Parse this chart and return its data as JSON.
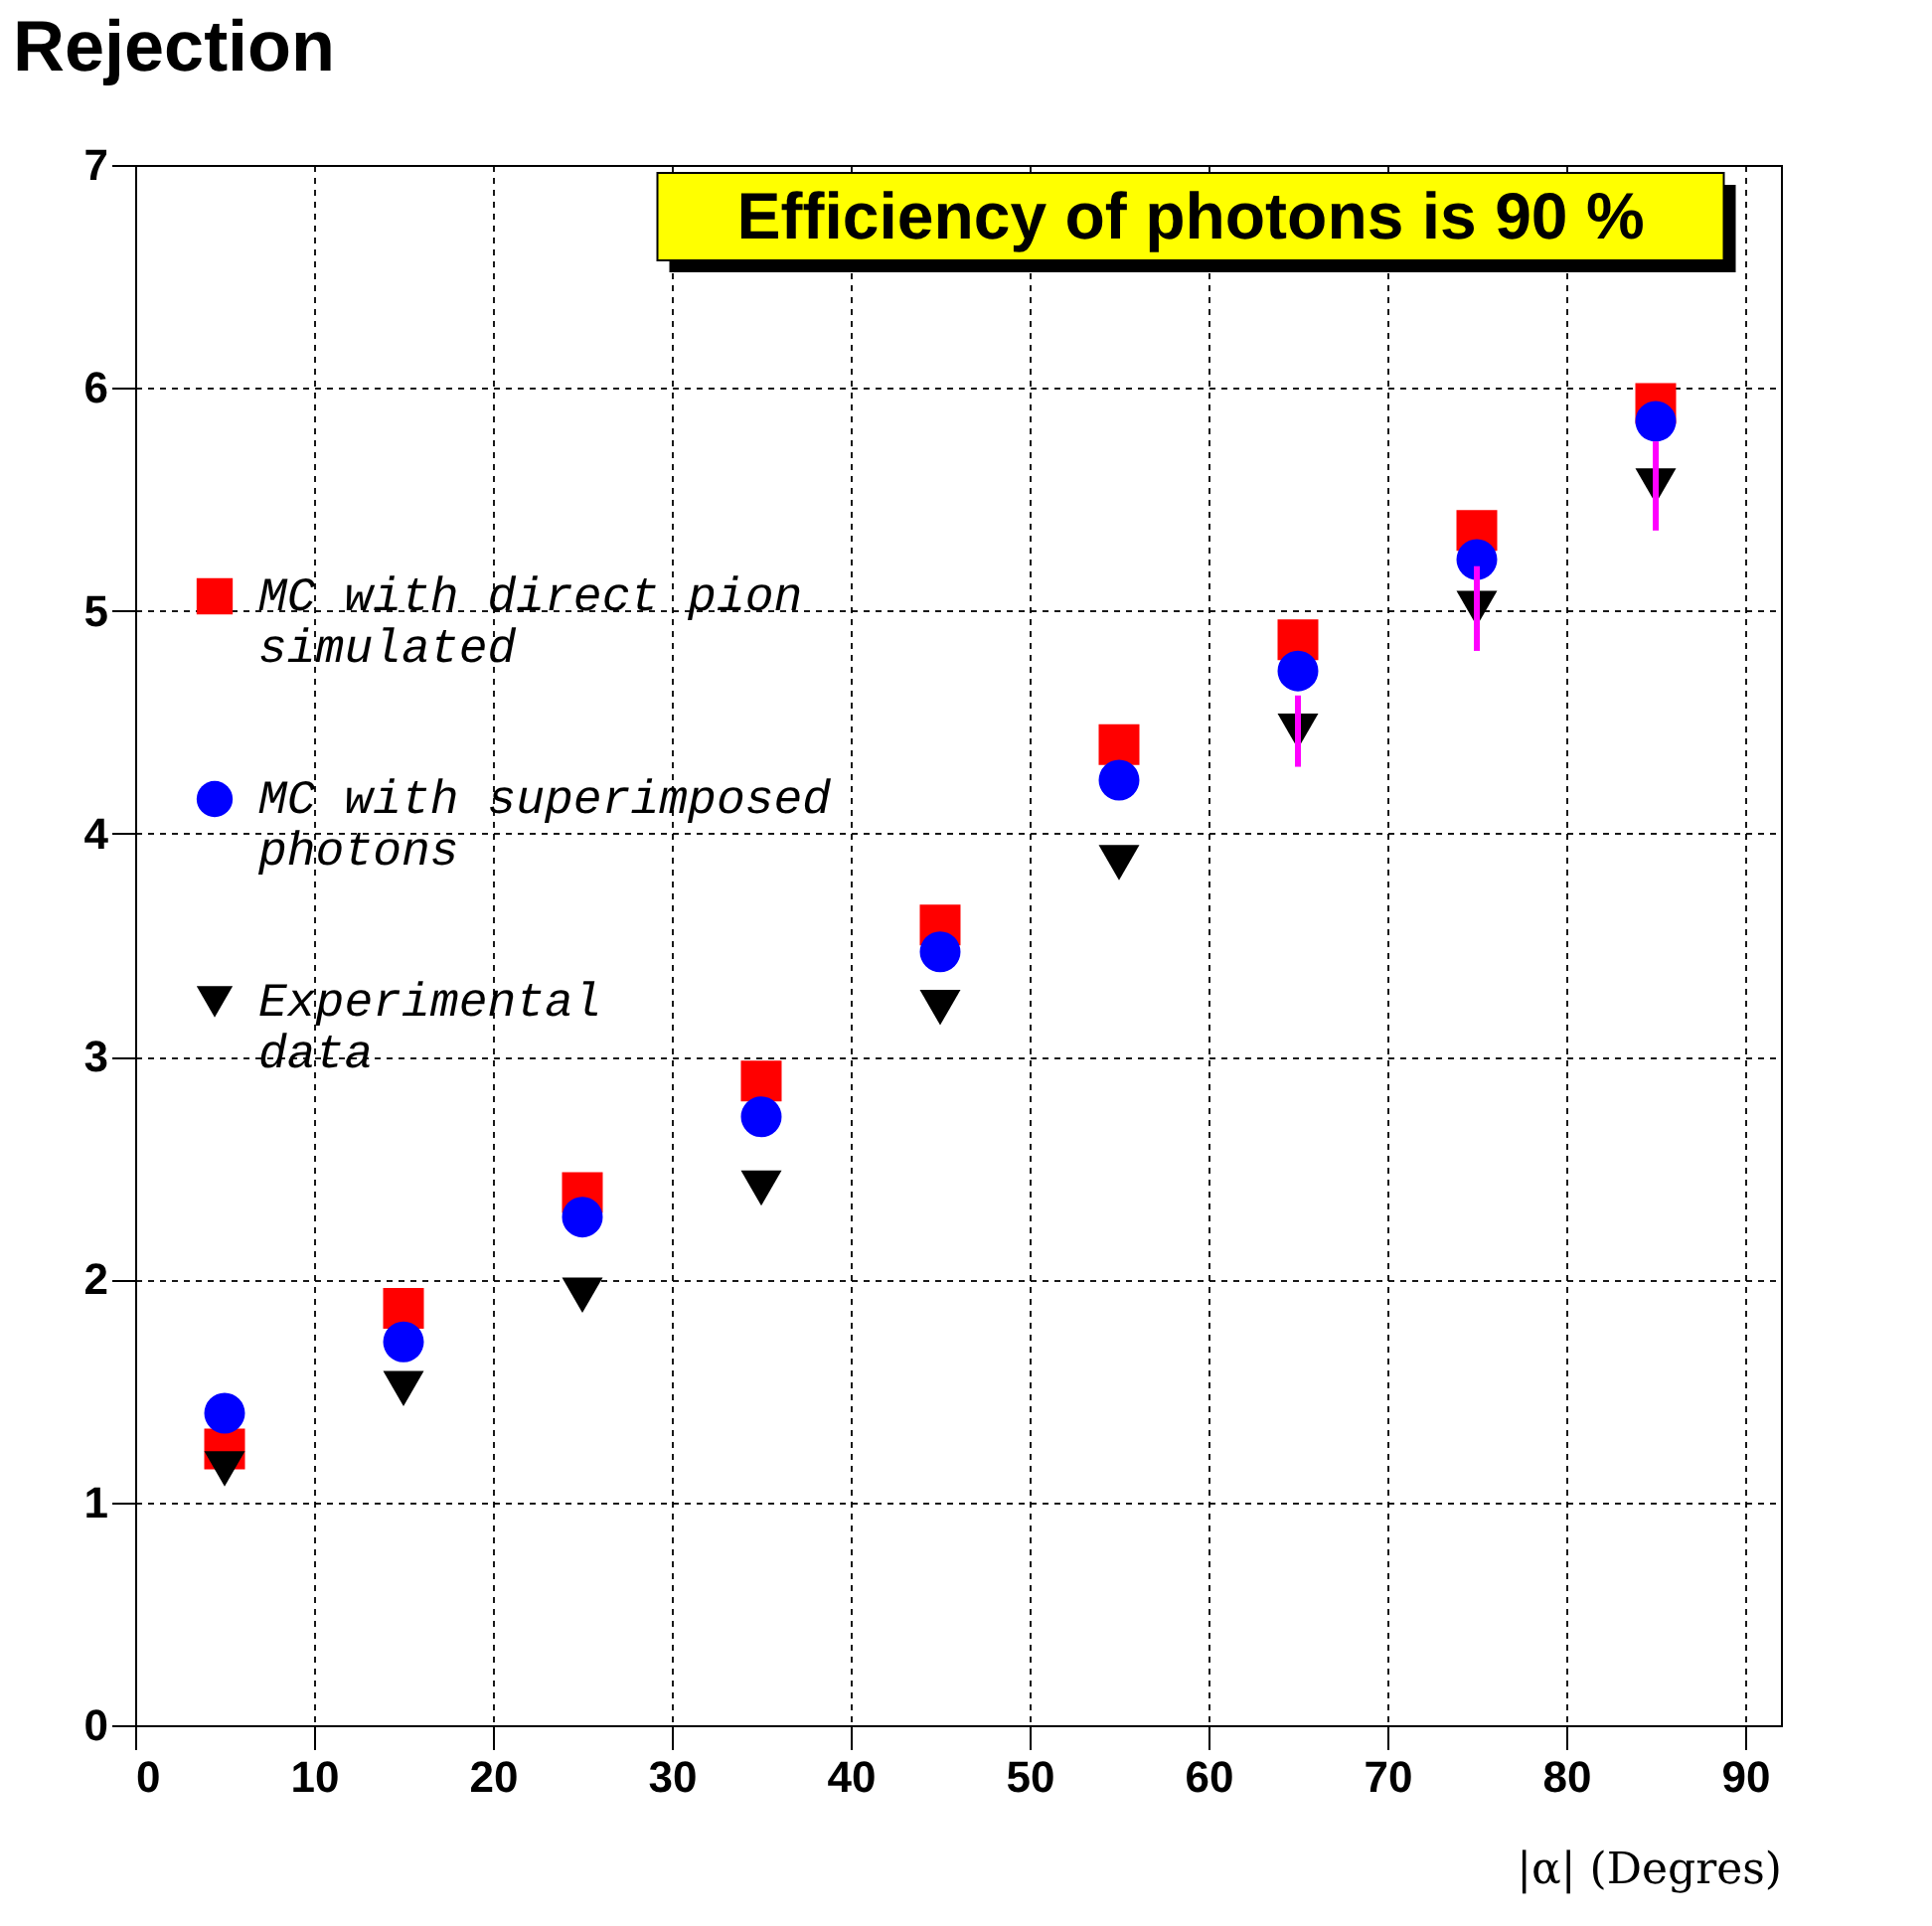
{
  "chart_data": {
    "type": "scatter",
    "title": "Efficiency of photons is 90 %",
    "xlabel": "|α| (Degres)",
    "ylabel": "Rejection",
    "x": [
      5,
      15,
      25,
      35,
      45,
      55,
      65,
      75,
      85
    ],
    "series": [
      {
        "name": "MC with direct pion simulated",
        "color": "#ff0000",
        "marker": "square",
        "values": [
          1.24,
          1.87,
          2.39,
          2.89,
          3.59,
          4.4,
          4.87,
          5.36,
          5.93
        ]
      },
      {
        "name": "MC with superimposed photons",
        "color": "#0000ff",
        "marker": "circle",
        "values": [
          1.4,
          1.72,
          2.28,
          2.73,
          3.47,
          4.24,
          4.73,
          5.23,
          5.85
        ]
      },
      {
        "name": "Experimental data",
        "color": "#000000",
        "marker": "triangle",
        "values": [
          1.15,
          1.51,
          1.93,
          2.41,
          3.22,
          3.87,
          4.46,
          5.01,
          5.56
        ],
        "errors": [
          null,
          null,
          null,
          null,
          null,
          null,
          0.16,
          0.19,
          0.2
        ]
      }
    ],
    "xlim": [
      0,
      92
    ],
    "xticks": [
      0,
      10,
      20,
      30,
      40,
      50,
      60,
      70,
      80,
      90
    ],
    "ylim": [
      0,
      7
    ],
    "yticks": [
      0,
      1,
      2,
      3,
      4,
      5,
      6,
      7
    ],
    "grid": true,
    "legend": "left"
  }
}
